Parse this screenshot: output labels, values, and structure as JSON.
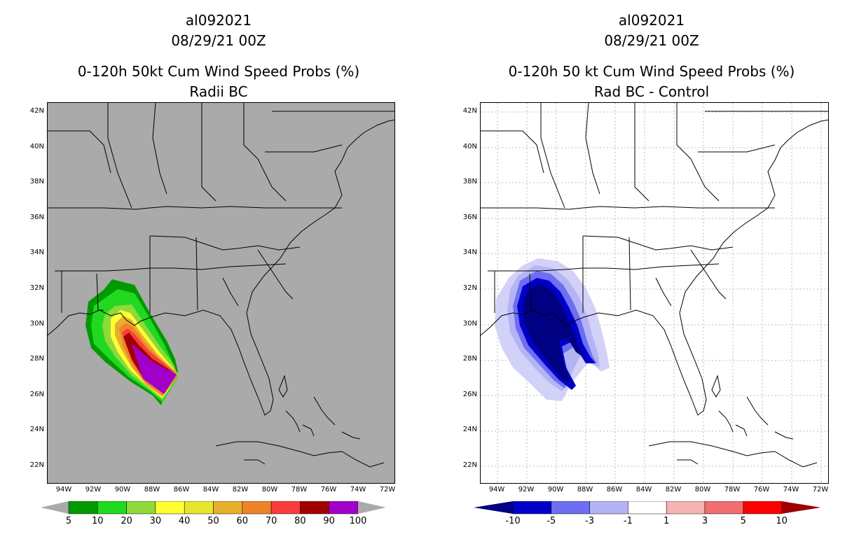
{
  "left_panel": {
    "storm_id": "al092021",
    "datetime": "08/29/21 00Z",
    "title": "0-120h 50kt Cum Wind Speed Probs (%)",
    "subtitle": "Radii BC"
  },
  "right_panel": {
    "storm_id": "al092021",
    "datetime": "08/29/21 00Z",
    "title": "0-120h 50 kt Cum Wind Speed Probs (%)",
    "subtitle": "Rad BC - Control"
  },
  "lat_labels": [
    "42N",
    "40N",
    "38N",
    "36N",
    "34N",
    "32N",
    "30N",
    "28N",
    "26N",
    "24N",
    "22N"
  ],
  "lon_labels": [
    "94W",
    "92W",
    "90W",
    "88W",
    "86W",
    "84W",
    "82W",
    "80W",
    "78W",
    "76W",
    "74W",
    "72W"
  ],
  "left_colorbar": {
    "labels": [
      "5",
      "10",
      "20",
      "30",
      "40",
      "50",
      "60",
      "70",
      "80",
      "90",
      "100"
    ],
    "colors": [
      "#009a00",
      "#21d921",
      "#8fd93a",
      "#ffff33",
      "#e6e62e",
      "#e6af2e",
      "#f08228",
      "#fa3c3c",
      "#a00000",
      "#a000c8"
    ],
    "end_color": "#aaaaaa"
  },
  "right_colorbar": {
    "labels": [
      "-10",
      "-5",
      "-3",
      "-1",
      "1",
      "3",
      "5",
      "10"
    ],
    "colors": [
      "#0000c8",
      "#6e6ef0",
      "#b4b4f5",
      "#ffffff",
      "#f5b4b4",
      "#f06e6e",
      "#fa0000"
    ],
    "low_end": "#000082",
    "high_end": "#a00000"
  }
}
